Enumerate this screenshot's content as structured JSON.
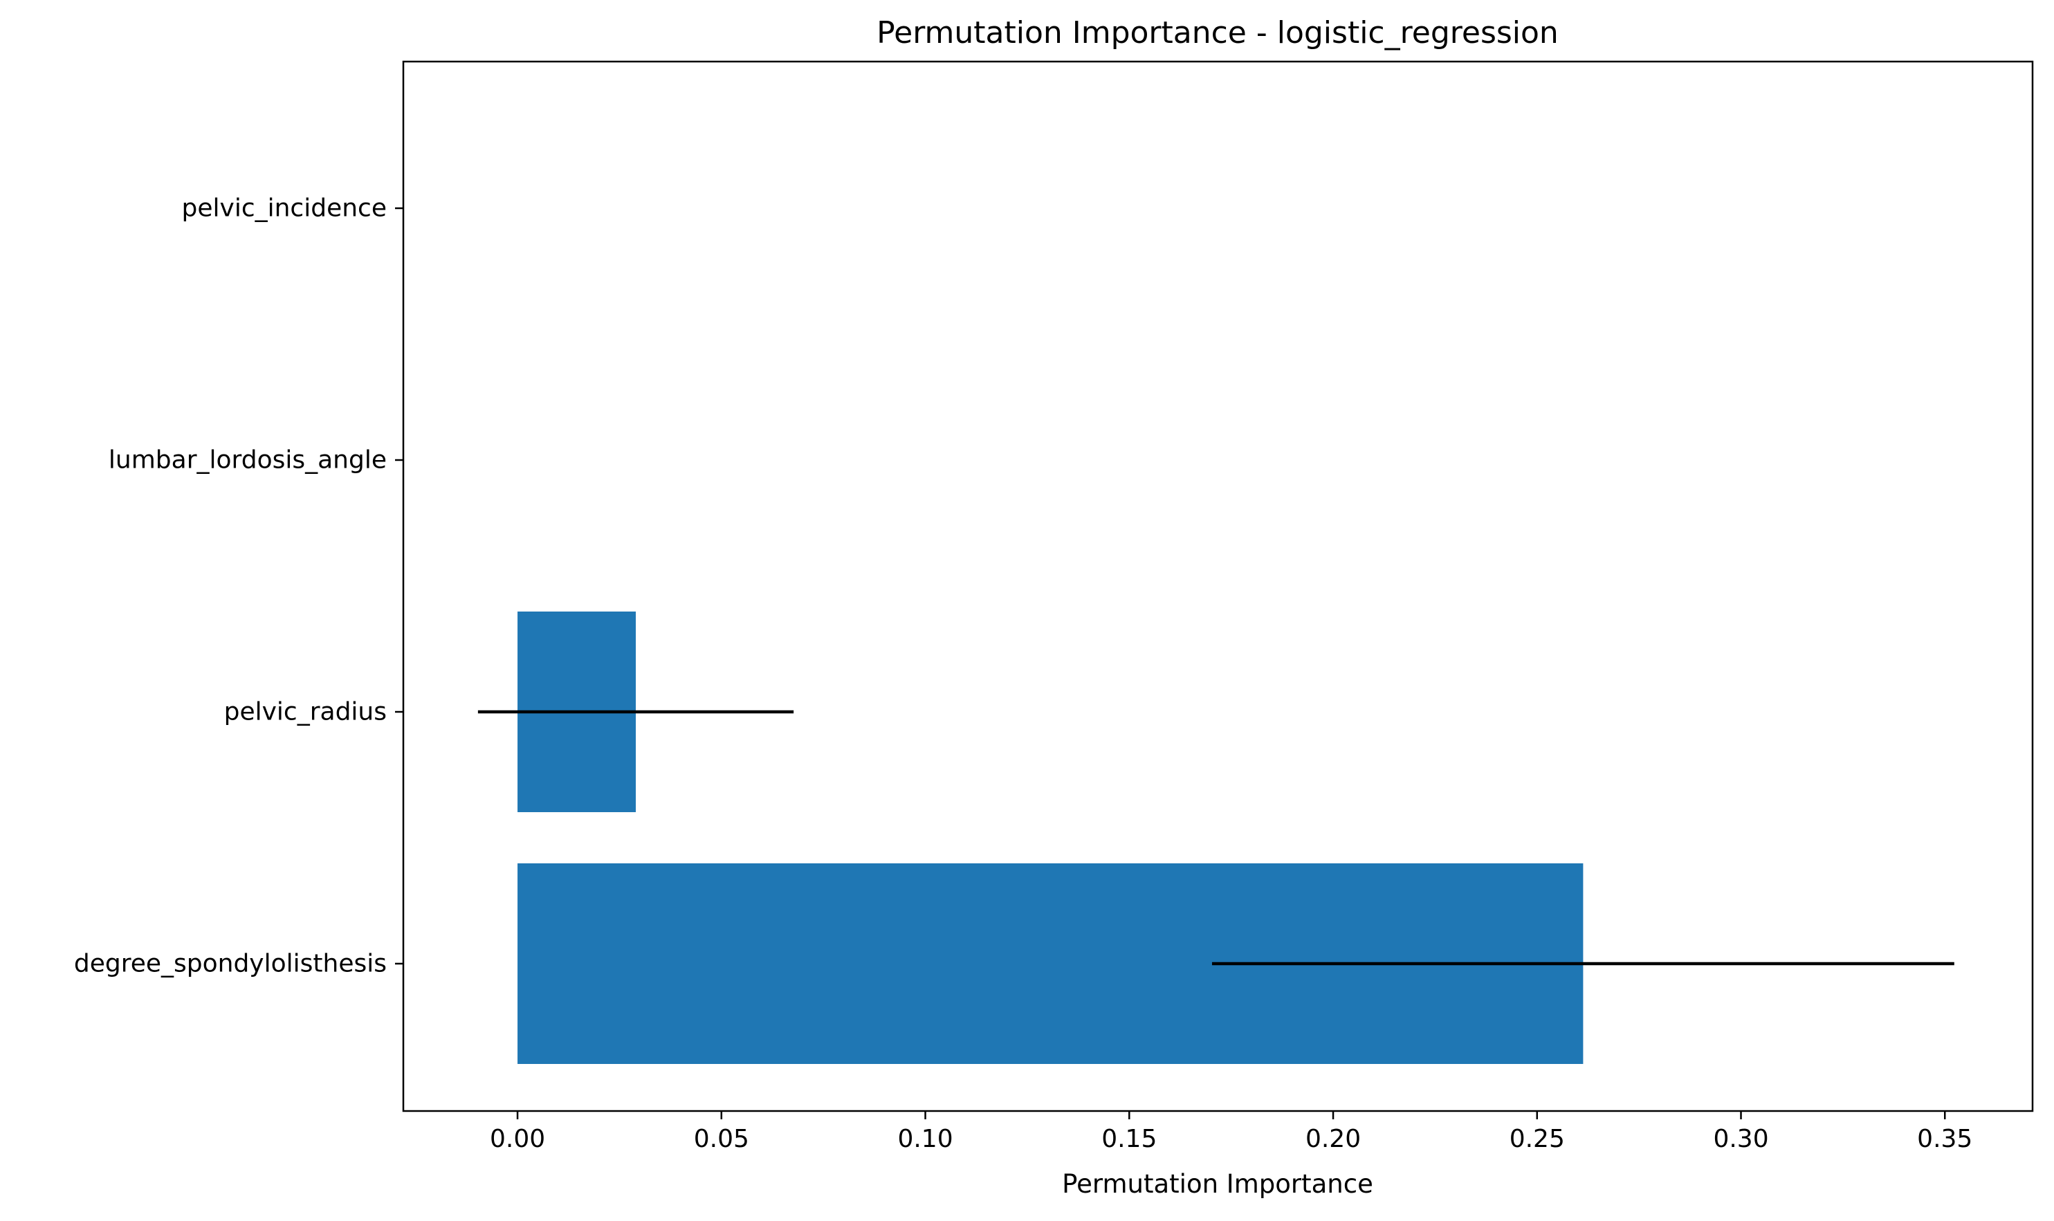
{
  "chart_data": {
    "type": "bar",
    "orientation": "horizontal",
    "title": "Permutation Importance - logistic_regression",
    "xlabel": "Permutation Importance",
    "ylabel": "",
    "categories": [
      "degree_spondylolisthesis",
      "pelvic_radius",
      "lumbar_lordosis_angle",
      "pelvic_incidence"
    ],
    "values": [
      0.2613,
      0.029,
      0.0,
      0.0
    ],
    "errors": [
      0.091,
      0.0387,
      0.0,
      0.0
    ],
    "xlim": [
      -0.028,
      0.3715
    ],
    "xticks": [
      0.0,
      0.05,
      0.1,
      0.15,
      0.2,
      0.25,
      0.3,
      0.35
    ],
    "xtick_labels": [
      "0.00",
      "0.05",
      "0.10",
      "0.15",
      "0.20",
      "0.25",
      "0.30",
      "0.35"
    ],
    "grid": false,
    "legend": "none",
    "bar_color": "#1f77b4",
    "error_color": "#000000"
  }
}
